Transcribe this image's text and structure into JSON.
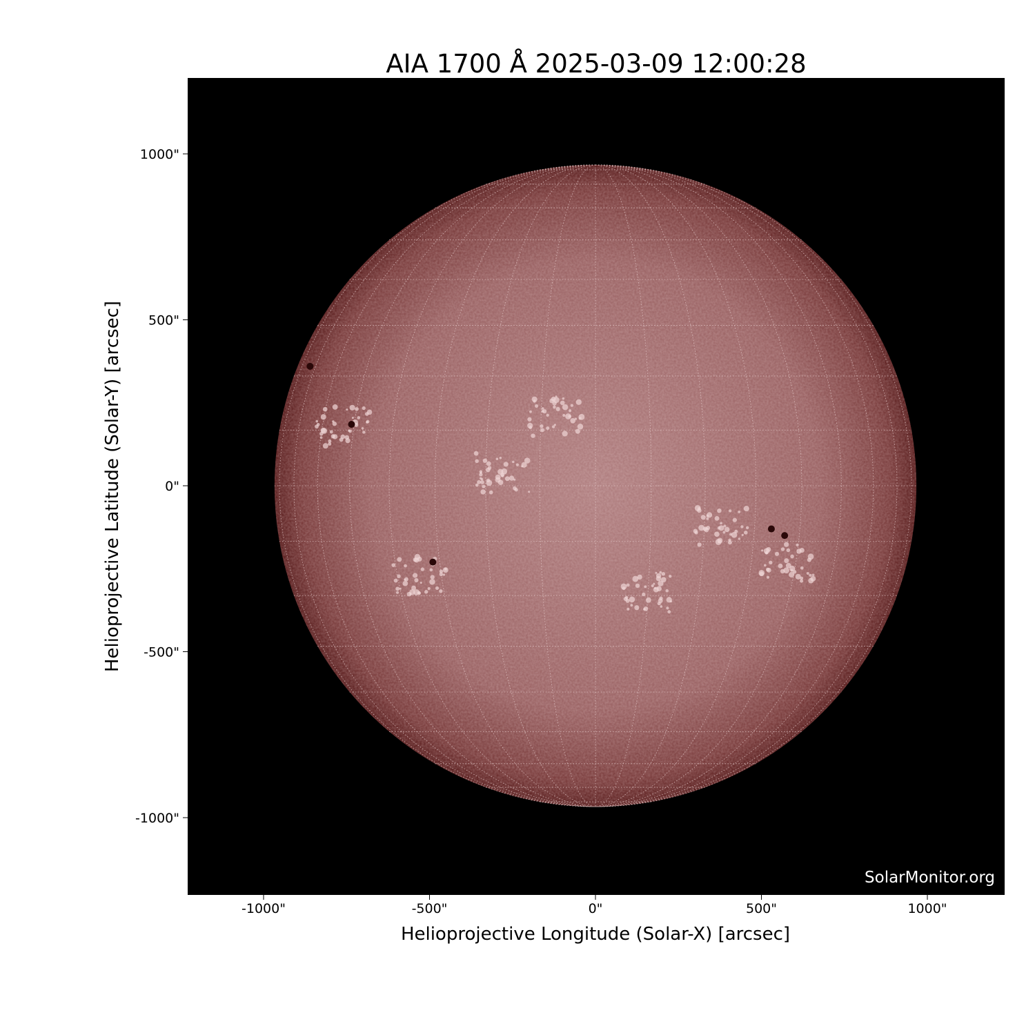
{
  "title": "AIA 1700 Å 2025-03-09 12:00:28",
  "watermark": "SolarMonitor.org",
  "chart_data": {
    "type": "image",
    "title": "AIA 1700 Å 2025-03-09 12:00:28",
    "xlabel": "Helioprojective Longitude (Solar-X) [arcsec]",
    "ylabel": "Helioprojective Latitude (Solar-Y) [arcsec]",
    "xlim": [
      -1230,
      1230
    ],
    "ylim": [
      -1230,
      1230
    ],
    "xticks": [
      -1000,
      -500,
      0,
      500,
      1000
    ],
    "yticks": [
      -1000,
      -500,
      0,
      500,
      1000
    ],
    "xtick_labels": [
      "-1000\"",
      "-500\"",
      "0\"",
      "500\"",
      "1000\""
    ],
    "ytick_labels": [
      "-1000\"",
      "-500\"",
      "0\"",
      "500\"",
      "1000\""
    ],
    "solar_radius_arcsec": 967,
    "grid": "heliographic lat/lon, dotted white",
    "colormap": "sdoaia1700 (dark red to white)",
    "colors": {
      "background": "#000000",
      "disk_center": "#b07a7a",
      "disk_limb": "#5a1e1e"
    },
    "sunspots": [
      {
        "x": -490,
        "y": -230
      },
      {
        "x": -735,
        "y": 185
      },
      {
        "x": -860,
        "y": 360
      },
      {
        "x": 530,
        "y": -130
      },
      {
        "x": 570,
        "y": -150
      }
    ],
    "plage_regions": [
      {
        "x": 380,
        "y": -120
      },
      {
        "x": -530,
        "y": -270
      },
      {
        "x": -760,
        "y": 180
      },
      {
        "x": -280,
        "y": 40
      },
      {
        "x": 150,
        "y": -320
      },
      {
        "x": 580,
        "y": -230
      },
      {
        "x": -120,
        "y": 210
      }
    ]
  }
}
